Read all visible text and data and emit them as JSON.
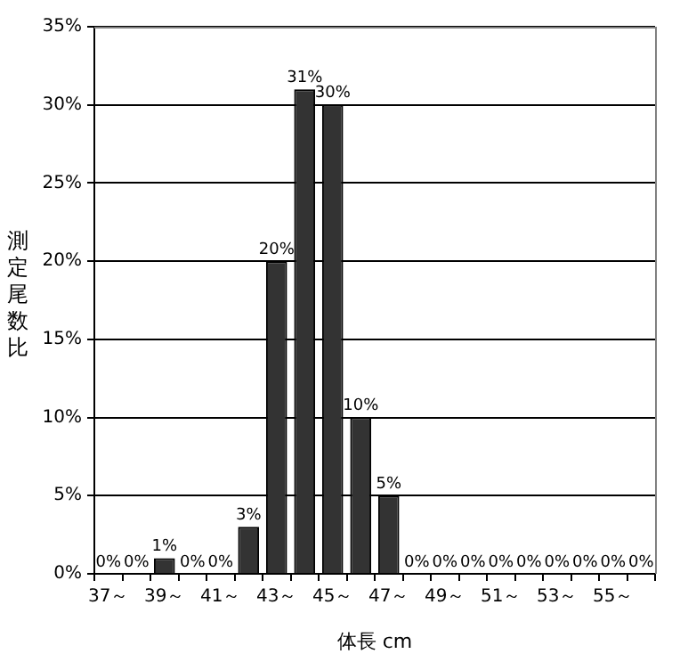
{
  "chart_data": {
    "type": "bar",
    "xlabel": "体長 cm",
    "ylabel": "測定尾数比",
    "categories": [
      "37～",
      null,
      "39～",
      null,
      "41～",
      null,
      "43～",
      null,
      "45～",
      null,
      "47～",
      null,
      "49～",
      null,
      "51～",
      null,
      "53～",
      null,
      "55～",
      null
    ],
    "values": [
      0,
      0,
      1,
      0,
      0,
      3,
      20,
      31,
      30,
      10,
      5,
      0,
      0,
      0,
      0,
      0,
      0,
      0,
      0,
      0
    ],
    "value_labels": [
      "0%",
      "0%",
      "1%",
      "0%",
      "0%",
      "3%",
      "20%",
      "31%",
      "30%",
      "10%",
      "5%",
      "0%",
      "0%",
      "0%",
      "0%",
      "0%",
      "0%",
      "0%",
      "0%",
      "0%"
    ],
    "color": "#333333",
    "ylim": [
      0,
      35
    ],
    "yticks": [
      {
        "value": 0,
        "label": "0%"
      },
      {
        "value": 5,
        "label": "5%"
      },
      {
        "value": 10,
        "label": "10%"
      },
      {
        "value": 15,
        "label": "15%"
      },
      {
        "value": 20,
        "label": "20%"
      },
      {
        "value": 25,
        "label": "25%"
      },
      {
        "value": 30,
        "label": "30%"
      },
      {
        "value": 35,
        "label": "35%"
      }
    ],
    "grid": "y",
    "legend": false
  }
}
